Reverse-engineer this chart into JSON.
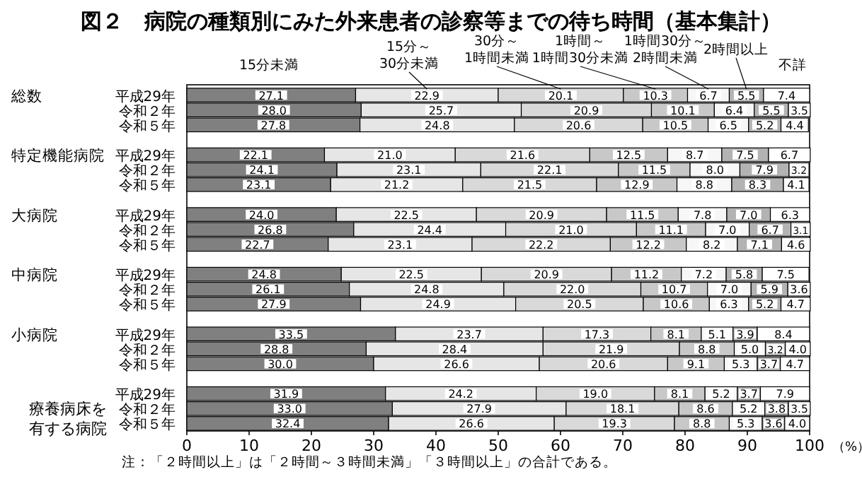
{
  "chart_data": {
    "type": "bar",
    "orientation": "horizontal",
    "stacked": true,
    "legend": false,
    "title": "図２　病院の種類別にみた外来患者の診察等までの待ち時間（基本集計）",
    "xlabel": "（%）",
    "categories": [
      "平成29年",
      "令和２年",
      "令和５年",
      null,
      "平成29年",
      "令和２年",
      "令和５年",
      null,
      "平成29年",
      "令和２年",
      "令和５年",
      null,
      "平成29年",
      "令和２年",
      "令和５年",
      null,
      "平成29年",
      "令和２年",
      "令和５年",
      null,
      "平成29年",
      "令和２年",
      "令和５年"
    ],
    "xlim": [
      0,
      100
    ],
    "xticks": [
      0,
      10,
      20,
      30,
      40,
      50,
      60,
      70,
      80,
      90,
      100
    ],
    "annotations": [
      "総数",
      "特定機能病院",
      "大病院",
      "中病院",
      "小病院",
      "療養病床を有する病院",
      "注：「２時間以上」は「２時間～３時間未満」「３時間以上」の合計である。"
    ],
    "series": [
      {
        "name": "15分未満",
        "color": "#808080",
        "values": [
          27.1,
          28.0,
          27.8,
          null,
          22.1,
          24.1,
          23.1,
          null,
          24.0,
          26.8,
          22.7,
          null,
          24.8,
          26.1,
          27.9,
          null,
          33.5,
          28.8,
          30.0,
          null,
          31.9,
          33.0,
          32.4
        ],
        "value_labels": [
          "27.1",
          "28.0",
          "27.8",
          null,
          "22.1",
          "24.1",
          "23.1",
          null,
          "24.0",
          "26.8",
          "22.7",
          null,
          "24.8",
          "26.1",
          "27.9",
          null,
          "33.5",
          "28.8",
          "30.0",
          null,
          "31.9",
          "33.0",
          "32.4"
        ]
      },
      {
        "name": "15分～30分未満",
        "color": "#e6e6e6",
        "values": [
          22.9,
          25.7,
          24.8,
          null,
          21.0,
          23.1,
          21.2,
          null,
          22.5,
          24.4,
          23.1,
          null,
          22.5,
          24.8,
          24.9,
          null,
          23.7,
          28.4,
          26.6,
          null,
          24.2,
          27.9,
          26.6
        ],
        "value_labels": [
          "22.9",
          "25.7",
          "24.8",
          null,
          "21.0",
          "23.1",
          "21.2",
          null,
          "22.5",
          "24.4",
          "23.1",
          null,
          "22.5",
          "24.8",
          "24.9",
          null,
          "23.7",
          "28.4",
          "26.6",
          null,
          "24.2",
          "27.9",
          "26.6"
        ]
      },
      {
        "name": "30分～1時間未満",
        "color": "#d9d9d9",
        "values": [
          20.1,
          20.9,
          20.6,
          null,
          21.6,
          22.1,
          21.5,
          null,
          20.9,
          21.0,
          22.2,
          null,
          20.9,
          22.0,
          20.5,
          null,
          17.3,
          21.9,
          20.6,
          null,
          19.0,
          18.1,
          19.3
        ],
        "value_labels": [
          "20.1",
          "20.9",
          "20.6",
          null,
          "21.6",
          "22.1",
          "21.5",
          null,
          "20.9",
          "21.0",
          "22.2",
          null,
          "20.9",
          "22.0",
          "20.5",
          null,
          "17.3",
          "21.9",
          "20.6",
          null,
          "19.0",
          "18.1",
          "19.3"
        ]
      },
      {
        "name": "1時間～1時間30分未満",
        "color": "#c8c8c8",
        "values": [
          10.3,
          10.1,
          10.5,
          null,
          12.5,
          11.5,
          12.9,
          null,
          11.5,
          11.1,
          12.2,
          null,
          11.2,
          10.7,
          10.6,
          null,
          8.1,
          8.8,
          9.1,
          null,
          8.1,
          8.6,
          8.8
        ],
        "value_labels": [
          "10.3",
          "10.1",
          "10.5",
          null,
          "12.5",
          "11.5",
          "12.9",
          null,
          "11.5",
          "11.1",
          "12.2",
          null,
          "11.2",
          "10.7",
          "10.6",
          null,
          "8.1",
          "8.8",
          "9.1",
          null,
          "8.1",
          "8.6",
          "8.8"
        ]
      },
      {
        "name": "1時間30分～2時間未満",
        "color": "#f7f7f7",
        "values": [
          6.7,
          6.4,
          6.5,
          null,
          8.7,
          8.0,
          8.8,
          null,
          7.8,
          7.0,
          8.2,
          null,
          7.2,
          7.0,
          6.3,
          null,
          5.1,
          5.0,
          5.3,
          null,
          5.2,
          5.2,
          5.3
        ],
        "value_labels": [
          "6.7",
          "6.4",
          "6.5",
          null,
          "8.7",
          "8.0",
          "8.8",
          null,
          "7.8",
          "7.0",
          "8.2",
          null,
          "7.2",
          "7.0",
          "6.3",
          null,
          "5.1",
          "5.0",
          "5.3",
          null,
          "5.2",
          "5.2",
          "5.3"
        ]
      },
      {
        "name": "2時間以上",
        "color": "#b3b3b3",
        "values": [
          5.5,
          5.5,
          5.2,
          null,
          7.5,
          7.9,
          8.3,
          null,
          7.0,
          6.7,
          7.1,
          null,
          5.8,
          5.9,
          5.2,
          null,
          3.9,
          3.2,
          3.7,
          null,
          3.7,
          3.8,
          3.6
        ],
        "value_labels": [
          "5.5",
          "5.5",
          "5.2",
          null,
          "7.5",
          "7.9",
          "8.3",
          null,
          "7.0",
          "6.7",
          "7.1",
          null,
          "5.8",
          "5.9",
          "5.2",
          null,
          "3.9",
          "3.2",
          "3.7",
          null,
          "3.7",
          "3.8",
          "3.6"
        ]
      },
      {
        "name": "不詳",
        "color": "#ffffff",
        "values": [
          7.4,
          3.5,
          4.4,
          null,
          6.7,
          3.2,
          4.1,
          null,
          6.3,
          3.1,
          4.6,
          null,
          7.5,
          3.6,
          4.7,
          null,
          8.4,
          4.0,
          4.7,
          null,
          7.9,
          3.5,
          4.0
        ],
        "value_labels": [
          "7.4",
          "3.5",
          "4.4",
          null,
          "6.7",
          "3.2",
          "4.1",
          null,
          "6.3",
          "3.1",
          "4.6",
          null,
          "7.5",
          "3.6",
          "4.7",
          null,
          "8.4",
          "4.0",
          "4.7",
          null,
          "7.9",
          "3.5",
          "4.0"
        ]
      }
    ]
  }
}
